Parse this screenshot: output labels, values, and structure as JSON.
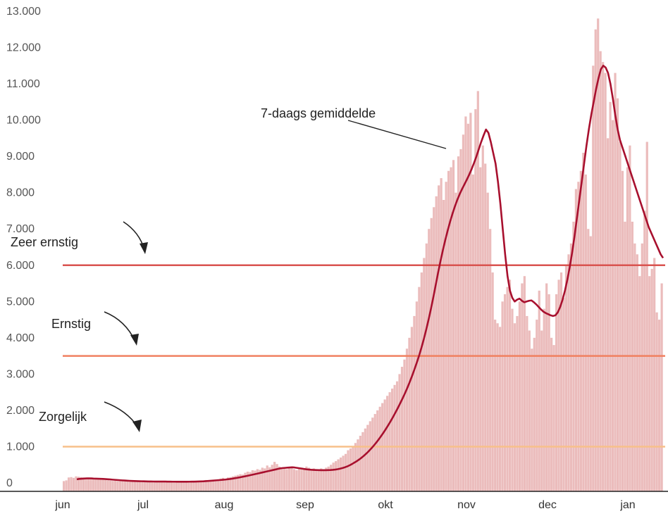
{
  "chart_data": {
    "type": "bar",
    "title": "",
    "xlabel": "",
    "ylabel": "",
    "ylim": [
      0,
      13000
    ],
    "y_ticks": [
      "0",
      "1.000",
      "2.000",
      "3.000",
      "4.000",
      "5.000",
      "6.000",
      "7.000",
      "8.000",
      "9.000",
      "10.000",
      "11.000",
      "12.000",
      "13.000"
    ],
    "x_ticks": [
      "jun",
      "jul",
      "aug",
      "sep",
      "okt",
      "nov",
      "dec",
      "jan"
    ],
    "grid": false,
    "thresholds": [
      {
        "label": "Zeer ernstig",
        "value": 6000,
        "color": "#d9534f"
      },
      {
        "label": "Ernstig",
        "value": 3500,
        "color": "#f08060"
      },
      {
        "label": "Zorgelijk",
        "value": 1000,
        "color": "#f7c08a"
      }
    ],
    "annotation": "7-daags gemiddelde",
    "colors": {
      "bars": "#ebbcbc",
      "average_line": "#a8102e"
    },
    "series": [
      {
        "type": "bar",
        "values": [
          50,
          70,
          150,
          160,
          140,
          180,
          170,
          160,
          150,
          140,
          150,
          140,
          130,
          120,
          110,
          100,
          90,
          80,
          70,
          60,
          55,
          60,
          50,
          55,
          50,
          45,
          40,
          50,
          40,
          35,
          40,
          45,
          40,
          35,
          40,
          45,
          30,
          35,
          40,
          30,
          25,
          30,
          35,
          30,
          25,
          30,
          35,
          40,
          30,
          35,
          40,
          35,
          45,
          60,
          50,
          40,
          60,
          70,
          80,
          70,
          75,
          80,
          90,
          100,
          120,
          140,
          110,
          150,
          160,
          180,
          200,
          220,
          240,
          230,
          280,
          310,
          300,
          350,
          340,
          380,
          360,
          420,
          400,
          480,
          430,
          500,
          580,
          520,
          450,
          420,
          400,
          380,
          420,
          450,
          380,
          350,
          400,
          420,
          380,
          450,
          420,
          380,
          400,
          350,
          370,
          400,
          380,
          420,
          450,
          500,
          560,
          600,
          650,
          700,
          750,
          800,
          900,
          950,
          1000,
          1100,
          1200,
          1300,
          1400,
          1500,
          1600,
          1700,
          1800,
          1900,
          2000,
          2100,
          2200,
          2300,
          2400,
          2500,
          2600,
          2700,
          2800,
          3000,
          3200,
          3400,
          3700,
          4000,
          4300,
          4600,
          5000,
          5400,
          5800,
          6200,
          6600,
          7000,
          7300,
          7600,
          7900,
          8200,
          8400,
          7800,
          8300,
          8600,
          8700,
          8900,
          8000,
          9000,
          9200,
          9600,
          10100,
          9900,
          10200,
          8500,
          10300,
          10800,
          8700,
          9300,
          8800,
          8000,
          7000,
          5800,
          4500,
          4400,
          4300,
          5000,
          5200,
          5400,
          5600,
          4800,
          4400,
          4600,
          5000,
          5500,
          5700,
          4600,
          4200,
          3700,
          4000,
          4500,
          5300,
          4200,
          4800,
          5500,
          5200,
          4000,
          3800,
          5200,
          5600,
          5800,
          5100,
          6000,
          6300,
          6600,
          7200,
          8100,
          8300,
          8600,
          9100,
          8500,
          7000,
          6800,
          11500,
          12500,
          12800,
          11900,
          11600,
          11300,
          9500,
          10500,
          10000,
          11300,
          10600,
          9400,
          8600,
          7200,
          8700,
          9300,
          7200,
          6600,
          6300,
          5700,
          6600,
          7500,
          9400,
          5700,
          5900,
          6200,
          4700,
          4500,
          5500
        ],
        "note": "daily values, 1 jun to mid jan"
      },
      {
        "type": "line",
        "name": "7-daags gemiddelde",
        "values": [
          100,
          110,
          115,
          120,
          125,
          125,
          125,
          120,
          118,
          115,
          113,
          110,
          105,
          100,
          95,
          90,
          85,
          80,
          75,
          70,
          66,
          62,
          58,
          55,
          52,
          50,
          48,
          46,
          44,
          42,
          40,
          40,
          39,
          38,
          38,
          38,
          37,
          37,
          36,
          35,
          34,
          34,
          33,
          33,
          32,
          32,
          33,
          34,
          35,
          36,
          38,
          40,
          42,
          45,
          50,
          55,
          60,
          65,
          70,
          75,
          80,
          86,
          92,
          100,
          108,
          118,
          130,
          140,
          152,
          165,
          178,
          192,
          206,
          220,
          235,
          250,
          265,
          280,
          295,
          310,
          325,
          340,
          355,
          370,
          385,
          400,
          410,
          415,
          420,
          425,
          430,
          425,
          415,
          405,
          395,
          385,
          375,
          368,
          362,
          358,
          355,
          352,
          350,
          350,
          350,
          352,
          355,
          360,
          368,
          378,
          392,
          410,
          430,
          455,
          485,
          520,
          560,
          600,
          645,
          695,
          750,
          810,
          875,
          945,
          1020,
          1100,
          1185,
          1275,
          1370,
          1470,
          1575,
          1685,
          1800,
          1920,
          2045,
          2175,
          2310,
          2450,
          2600,
          2760,
          2930,
          3110,
          3300,
          3500,
          3720,
          3960,
          4220,
          4500,
          4800,
          5120,
          5460,
          5800,
          6120,
          6420,
          6700,
          6960,
          7200,
          7420,
          7620,
          7800,
          7960,
          8100,
          8230,
          8360,
          8500,
          8650,
          8820,
          9000,
          9200,
          9400,
          9580,
          9740,
          9650,
          9400,
          9100,
          8800,
          8300,
          7700,
          7000,
          6300,
          5700,
          5300,
          5100,
          5000,
          5050,
          5080,
          5020,
          4980,
          5000,
          5020,
          5030,
          4980,
          4920,
          4850,
          4780,
          4720,
          4680,
          4650,
          4620,
          4600,
          4620,
          4700,
          4850,
          5050,
          5300,
          5600,
          5950,
          6350,
          6800,
          7300,
          7800,
          8300,
          8800,
          9300,
          9750,
          10150,
          10500,
          10850,
          11150,
          11400,
          11500,
          11450,
          11300,
          11000,
          10600,
          10150,
          9750,
          9450,
          9250,
          9050,
          8850,
          8650,
          8450,
          8250,
          8050,
          7850,
          7650,
          7450,
          7250,
          7050,
          6900,
          6750,
          6600,
          6450,
          6300,
          6200
        ]
      }
    ]
  }
}
